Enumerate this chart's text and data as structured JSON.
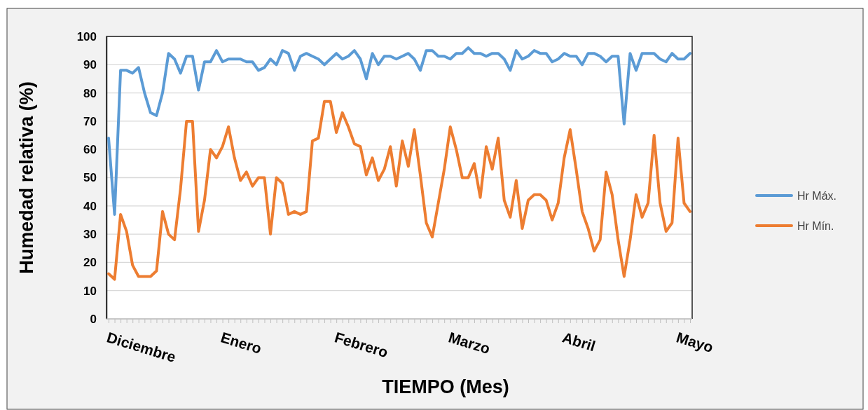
{
  "chart_data": {
    "type": "line",
    "xlabel": "TIEMPO (Mes)",
    "ylabel": "Humedad relativa (%)",
    "categories": [
      "Diciembre",
      null,
      null,
      null,
      null,
      null,
      null,
      null,
      null,
      null,
      null,
      null,
      null,
      null,
      null,
      null,
      null,
      null,
      null,
      "Enero",
      null,
      null,
      null,
      null,
      null,
      null,
      null,
      null,
      null,
      null,
      null,
      null,
      null,
      null,
      null,
      null,
      null,
      null,
      "Febrero",
      null,
      null,
      null,
      null,
      null,
      null,
      null,
      null,
      null,
      null,
      null,
      null,
      null,
      null,
      null,
      null,
      null,
      null,
      "Marzo",
      null,
      null,
      null,
      null,
      null,
      null,
      null,
      null,
      null,
      null,
      null,
      null,
      null,
      null,
      null,
      null,
      null,
      null,
      "Abril",
      null,
      null,
      null,
      null,
      null,
      null,
      null,
      null,
      null,
      null,
      null,
      null,
      null,
      null,
      null,
      null,
      null,
      null,
      "Mayo",
      null,
      null
    ],
    "series": [
      {
        "name": "Hr Máx.",
        "color": "#5b9bd5",
        "values": [
          64,
          37,
          88,
          88,
          87,
          89,
          80,
          73,
          72,
          80,
          94,
          92,
          87,
          93,
          93,
          81,
          91,
          91,
          95,
          91,
          92,
          92,
          92,
          91,
          91,
          88,
          89,
          92,
          90,
          95,
          94,
          88,
          93,
          94,
          93,
          92,
          90,
          92,
          94,
          92,
          93,
          95,
          92,
          85,
          94,
          90,
          93,
          93,
          92,
          93,
          94,
          92,
          88,
          95,
          95,
          93,
          93,
          92,
          94,
          94,
          96,
          94,
          94,
          93,
          94,
          94,
          92,
          88,
          95,
          92,
          93,
          95,
          94,
          94,
          91,
          92,
          94,
          93,
          93,
          90,
          94,
          94,
          93,
          91,
          93,
          93,
          69,
          94,
          88,
          94,
          94,
          94,
          92,
          91,
          94,
          92,
          92,
          94
        ]
      },
      {
        "name": "Hr Mín.",
        "color": "#ed7d31",
        "values": [
          16,
          14,
          37,
          31,
          19,
          15,
          15,
          15,
          17,
          38,
          30,
          28,
          46,
          70,
          70,
          31,
          42,
          60,
          57,
          61,
          68,
          57,
          49,
          52,
          47,
          50,
          50,
          30,
          50,
          48,
          37,
          38,
          37,
          38,
          63,
          64,
          77,
          77,
          66,
          73,
          68,
          62,
          61,
          51,
          57,
          49,
          53,
          61,
          47,
          63,
          54,
          67,
          51,
          34,
          29,
          41,
          53,
          68,
          60,
          50,
          50,
          55,
          43,
          61,
          53,
          64,
          42,
          36,
          49,
          32,
          42,
          44,
          44,
          42,
          35,
          41,
          57,
          67,
          53,
          38,
          32,
          24,
          28,
          52,
          44,
          28,
          15,
          28,
          44,
          36,
          41,
          65,
          41,
          31,
          34,
          64,
          41,
          38
        ]
      }
    ],
    "ylim": [
      0,
      100
    ],
    "yticks": [
      0,
      10,
      20,
      30,
      40,
      50,
      60,
      70,
      80,
      90,
      100
    ],
    "grid": "y",
    "legend": "right",
    "marker": "none",
    "line_style": "solid"
  }
}
